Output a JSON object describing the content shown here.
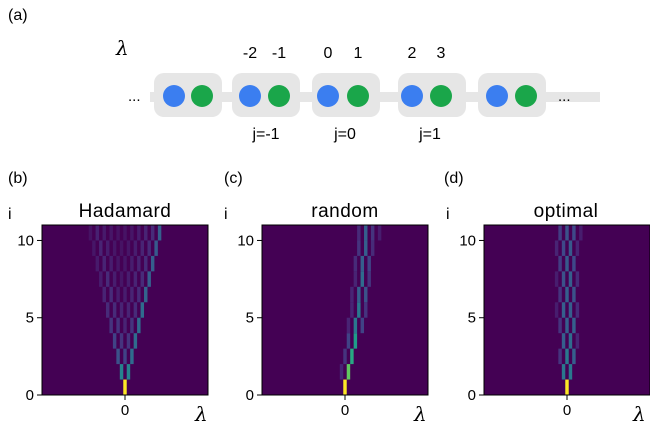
{
  "panel_a": {
    "label": "(a)",
    "lambda_symbol": "λ",
    "ellipsis_left": "...",
    "ellipsis_right": "...",
    "site_indices": [
      "-2",
      "-1",
      "0",
      "1",
      "2",
      "3"
    ],
    "cell_labels": [
      "j=-1",
      "j=0",
      "j=1"
    ],
    "colors": {
      "blue": "#3b7ef0",
      "green": "#1aa64a",
      "cell_bg": "#e6e6e6",
      "link": "#e6e6e6"
    }
  },
  "chart_data": [
    {
      "type": "heatmap",
      "panel_label": "(b)",
      "title": "Hadamard",
      "ylabel": "i",
      "xlabel": "λ",
      "yticks": [
        "0",
        "5",
        "10"
      ],
      "xticks": [
        "0"
      ],
      "ylim": [
        0,
        11
      ],
      "colormap": "viridis",
      "rows": [
        {
          "i": 0,
          "peaks": [
            [
              0,
              1.0
            ]
          ]
        },
        {
          "i": 1,
          "peaks": [
            [
              -1,
              0.45
            ],
            [
              1,
              0.45
            ]
          ]
        },
        {
          "i": 2,
          "peaks": [
            [
              -2,
              0.25
            ],
            [
              0,
              0.2
            ],
            [
              2,
              0.35
            ]
          ]
        },
        {
          "i": 3,
          "peaks": [
            [
              -3,
              0.2
            ],
            [
              -1,
              0.15
            ],
            [
              1,
              0.15
            ],
            [
              3,
              0.35
            ]
          ]
        },
        {
          "i": 4,
          "peaks": [
            [
              -4,
              0.15
            ],
            [
              -2,
              0.15
            ],
            [
              0,
              0.1
            ],
            [
              2,
              0.15
            ],
            [
              4,
              0.35
            ]
          ]
        },
        {
          "i": 5,
          "peaks": [
            [
              -5,
              0.12
            ],
            [
              -3,
              0.12
            ],
            [
              -1,
              0.1
            ],
            [
              1,
              0.1
            ],
            [
              3,
              0.12
            ],
            [
              5,
              0.35
            ]
          ]
        },
        {
          "i": 6,
          "peaks": [
            [
              -6,
              0.1
            ],
            [
              -4,
              0.12
            ],
            [
              -2,
              0.08
            ],
            [
              0,
              0.08
            ],
            [
              2,
              0.1
            ],
            [
              4,
              0.12
            ],
            [
              6,
              0.32
            ]
          ]
        },
        {
          "i": 7,
          "peaks": [
            [
              -7,
              0.08
            ],
            [
              -5,
              0.12
            ],
            [
              -3,
              0.08
            ],
            [
              -1,
              0.06
            ],
            [
              1,
              0.08
            ],
            [
              3,
              0.1
            ],
            [
              5,
              0.12
            ],
            [
              7,
              0.3
            ]
          ]
        },
        {
          "i": 8,
          "peaks": [
            [
              -8,
              0.07
            ],
            [
              -6,
              0.1
            ],
            [
              -4,
              0.08
            ],
            [
              -2,
              0.06
            ],
            [
              0,
              0.06
            ],
            [
              2,
              0.08
            ],
            [
              4,
              0.1
            ],
            [
              6,
              0.12
            ],
            [
              8,
              0.3
            ]
          ]
        },
        {
          "i": 9,
          "peaks": [
            [
              -9,
              0.06
            ],
            [
              -7,
              0.1
            ],
            [
              -5,
              0.08
            ],
            [
              -3,
              0.06
            ],
            [
              -1,
              0.05
            ],
            [
              1,
              0.06
            ],
            [
              3,
              0.08
            ],
            [
              5,
              0.1
            ],
            [
              7,
              0.12
            ],
            [
              9,
              0.28
            ]
          ]
        },
        {
          "i": 10,
          "peaks": [
            [
              -10,
              0.05
            ],
            [
              -8,
              0.09
            ],
            [
              -6,
              0.07
            ],
            [
              -4,
              0.06
            ],
            [
              -2,
              0.05
            ],
            [
              0,
              0.05
            ],
            [
              2,
              0.06
            ],
            [
              4,
              0.08
            ],
            [
              6,
              0.1
            ],
            [
              8,
              0.12
            ],
            [
              10,
              0.3
            ]
          ]
        }
      ]
    },
    {
      "type": "heatmap",
      "panel_label": "(c)",
      "title": "random",
      "ylabel": "i",
      "xlabel": "λ",
      "yticks": [
        "0",
        "5",
        "10"
      ],
      "xticks": [
        "0"
      ],
      "ylim": [
        0,
        11
      ],
      "colormap": "viridis",
      "rows": [
        {
          "i": 0,
          "peaks": [
            [
              0,
              1.0
            ]
          ]
        },
        {
          "i": 1,
          "peaks": [
            [
              1,
              0.75
            ],
            [
              -1,
              0.1
            ]
          ]
        },
        {
          "i": 2,
          "peaks": [
            [
              2,
              0.6
            ],
            [
              0,
              0.15
            ]
          ]
        },
        {
          "i": 3,
          "peaks": [
            [
              3,
              0.55
            ],
            [
              1,
              0.2
            ]
          ]
        },
        {
          "i": 4,
          "peaks": [
            [
              3,
              0.4
            ],
            [
              5,
              0.2
            ],
            [
              1,
              0.1
            ]
          ]
        },
        {
          "i": 5,
          "peaks": [
            [
              4,
              0.4
            ],
            [
              6,
              0.15
            ],
            [
              2,
              0.1
            ]
          ]
        },
        {
          "i": 6,
          "peaks": [
            [
              4,
              0.3
            ],
            [
              6,
              0.25
            ],
            [
              2,
              0.1
            ]
          ]
        },
        {
          "i": 7,
          "peaks": [
            [
              5,
              0.35
            ],
            [
              7,
              0.15
            ],
            [
              3,
              0.1
            ]
          ]
        },
        {
          "i": 8,
          "peaks": [
            [
              5,
              0.3
            ],
            [
              7,
              0.2
            ],
            [
              3,
              0.12
            ]
          ]
        },
        {
          "i": 9,
          "peaks": [
            [
              6,
              0.3
            ],
            [
              8,
              0.12
            ],
            [
              4,
              0.15
            ]
          ]
        },
        {
          "i": 10,
          "peaks": [
            [
              6,
              0.3
            ],
            [
              8,
              0.15
            ],
            [
              4,
              0.12
            ],
            [
              10,
              0.08
            ]
          ]
        }
      ]
    },
    {
      "type": "heatmap",
      "panel_label": "(d)",
      "title": "optimal",
      "ylabel": "i",
      "xlabel": "λ",
      "yticks": [
        "0",
        "5",
        "10"
      ],
      "xticks": [
        "0"
      ],
      "ylim": [
        0,
        11
      ],
      "colormap": "viridis",
      "rows": [
        {
          "i": 0,
          "peaks": [
            [
              0,
              1.0
            ]
          ]
        },
        {
          "i": 1,
          "peaks": [
            [
              -1,
              0.4
            ],
            [
              1,
              0.4
            ]
          ]
        },
        {
          "i": 2,
          "peaks": [
            [
              0,
              0.4
            ],
            [
              2,
              0.3
            ],
            [
              -2,
              0.15
            ]
          ]
        },
        {
          "i": 3,
          "peaks": [
            [
              1,
              0.35
            ],
            [
              -1,
              0.3
            ],
            [
              3,
              0.1
            ]
          ]
        },
        {
          "i": 4,
          "peaks": [
            [
              0,
              0.3
            ],
            [
              2,
              0.3
            ],
            [
              -2,
              0.15
            ]
          ]
        },
        {
          "i": 5,
          "peaks": [
            [
              -1,
              0.3
            ],
            [
              1,
              0.3
            ],
            [
              3,
              0.12
            ],
            [
              -3,
              0.08
            ]
          ]
        },
        {
          "i": 6,
          "peaks": [
            [
              0,
              0.3
            ],
            [
              2,
              0.25
            ],
            [
              -2,
              0.15
            ]
          ]
        },
        {
          "i": 7,
          "peaks": [
            [
              1,
              0.3
            ],
            [
              -1,
              0.25
            ],
            [
              3,
              0.12
            ],
            [
              -3,
              0.08
            ]
          ]
        },
        {
          "i": 8,
          "peaks": [
            [
              0,
              0.28
            ],
            [
              2,
              0.22
            ],
            [
              -2,
              0.18
            ]
          ]
        },
        {
          "i": 9,
          "peaks": [
            [
              1,
              0.28
            ],
            [
              -1,
              0.22
            ],
            [
              3,
              0.1
            ],
            [
              -3,
              0.1
            ]
          ]
        },
        {
          "i": 10,
          "peaks": [
            [
              0,
              0.25
            ],
            [
              2,
              0.22
            ],
            [
              -2,
              0.18
            ],
            [
              4,
              0.08
            ]
          ]
        }
      ]
    }
  ]
}
